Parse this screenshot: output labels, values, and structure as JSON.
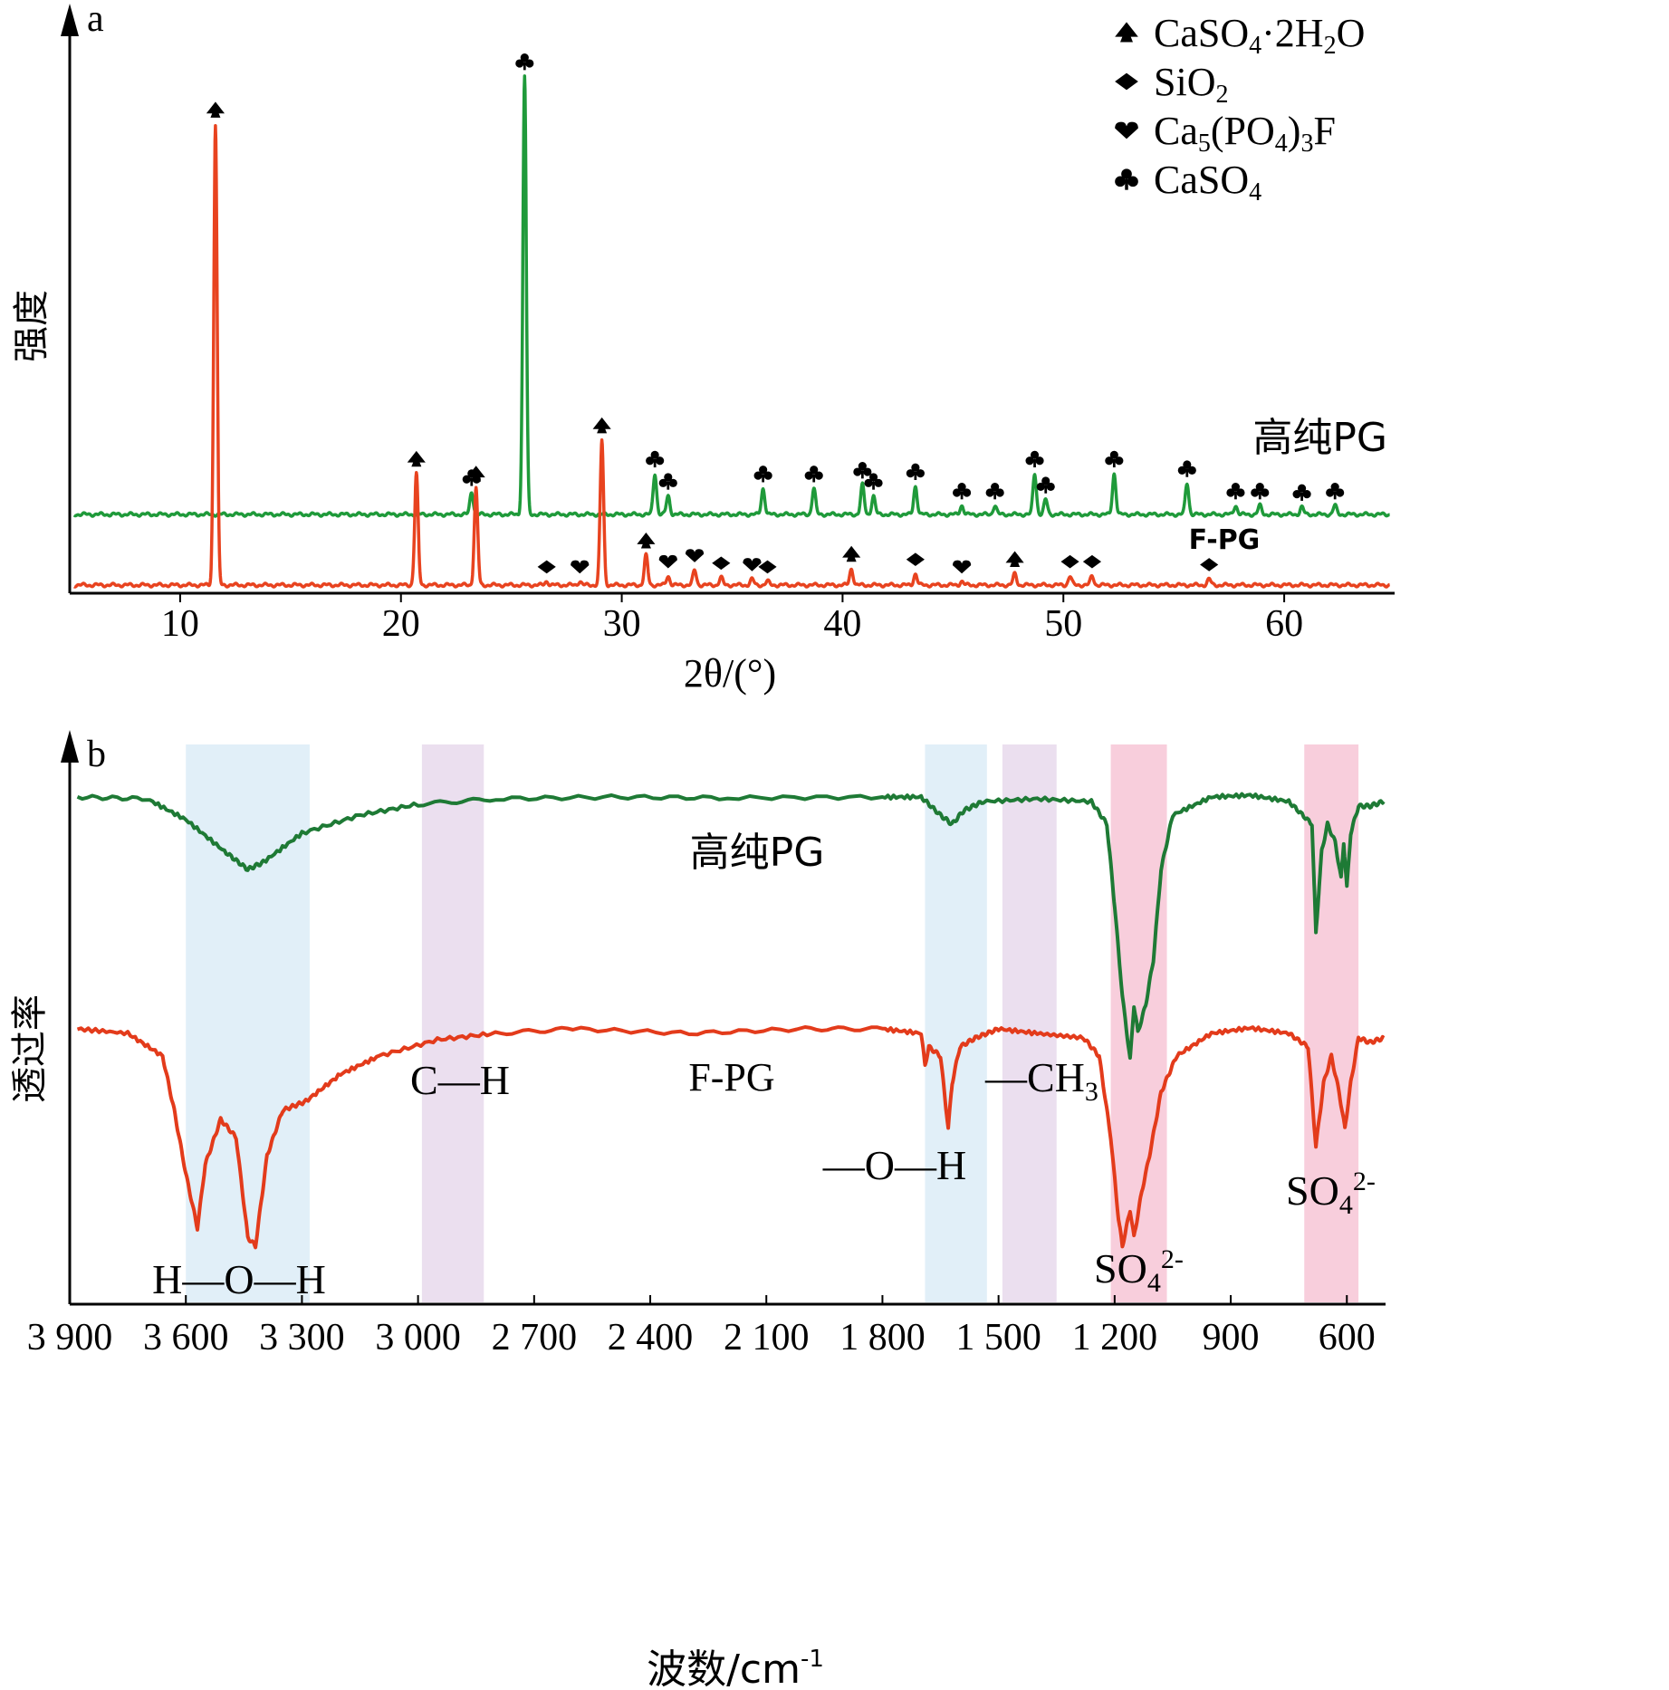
{
  "chart_data": [
    {
      "type": "line",
      "panel_label": "a",
      "xlabel": "2θ/(°)",
      "ylabel": "强度",
      "xlim": [
        5,
        65
      ],
      "xticks": [
        10,
        20,
        30,
        40,
        50,
        60
      ],
      "legend": {
        "position": "top-right",
        "entries": [
          {
            "marker": "spade",
            "html": "CaSO<tspan font-size='28' dy='8'>4</tspan><tspan dy='-8'>·2H</tspan><tspan font-size='28' dy='8'>2</tspan><tspan dy='-8'>O</tspan>",
            "text": "CaSO4·2H2O"
          },
          {
            "marker": "diamond",
            "html": "SiO<tspan font-size='28' dy='8'>2</tspan>",
            "text": "SiO2"
          },
          {
            "marker": "heart",
            "html": "Ca<tspan font-size='28' dy='8'>5</tspan><tspan dy='-8'>(PO</tspan><tspan font-size='28' dy='8'>4</tspan><tspan dy='-8'>)</tspan><tspan font-size='28' dy='8'>3</tspan><tspan dy='-8'>F</tspan>",
            "text": "Ca5(PO4)3F"
          },
          {
            "marker": "club",
            "html": "CaSO<tspan font-size='28' dy='8'>4</tspan>",
            "text": "CaSO4"
          }
        ]
      },
      "series": [
        {
          "name": "高纯PG",
          "color": "#1f9a3a",
          "baseline": 1.0,
          "peaks": [
            {
              "x": 23.2,
              "h": 0.3,
              "m": "club"
            },
            {
              "x": 25.6,
              "h": 5.9,
              "m": "club"
            },
            {
              "x": 31.5,
              "h": 0.55,
              "m": "club"
            },
            {
              "x": 32.1,
              "h": 0.25,
              "m": "club"
            },
            {
              "x": 36.4,
              "h": 0.35,
              "m": "club"
            },
            {
              "x": 38.7,
              "h": 0.35,
              "m": "club"
            },
            {
              "x": 40.9,
              "h": 0.4,
              "m": "club"
            },
            {
              "x": 41.4,
              "h": 0.25,
              "m": "club"
            },
            {
              "x": 43.3,
              "h": 0.38,
              "m": "club"
            },
            {
              "x": 45.4,
              "h": 0.12,
              "m": "club"
            },
            {
              "x": 46.9,
              "h": 0.12,
              "m": "club"
            },
            {
              "x": 48.7,
              "h": 0.55,
              "m": "club"
            },
            {
              "x": 49.2,
              "h": 0.2,
              "m": "club"
            },
            {
              "x": 52.3,
              "h": 0.55,
              "m": "club"
            },
            {
              "x": 55.6,
              "h": 0.42,
              "m": "club"
            },
            {
              "x": 57.8,
              "h": 0.12,
              "m": "club"
            },
            {
              "x": 58.9,
              "h": 0.12,
              "m": "club"
            },
            {
              "x": 60.8,
              "h": 0.1,
              "m": "club"
            },
            {
              "x": 62.3,
              "h": 0.12,
              "m": "club"
            }
          ]
        },
        {
          "name": "F-PG",
          "color": "#e8431f",
          "baseline": 0.0,
          "peaks": [
            {
              "x": 11.6,
              "h": 6.2,
              "m": "spade"
            },
            {
              "x": 20.7,
              "h": 1.5,
              "m": "spade"
            },
            {
              "x": 23.4,
              "h": 1.3,
              "m": "spade"
            },
            {
              "x": 26.6,
              "h": 0.05,
              "m": "diamond"
            },
            {
              "x": 28.1,
              "h": 0.05,
              "m": "heart"
            },
            {
              "x": 29.1,
              "h": 1.95,
              "m": "spade"
            },
            {
              "x": 31.1,
              "h": 0.4,
              "m": "spade"
            },
            {
              "x": 32.1,
              "h": 0.12,
              "m": "heart"
            },
            {
              "x": 33.3,
              "h": 0.2,
              "m": "heart"
            },
            {
              "x": 34.5,
              "h": 0.1,
              "m": "diamond"
            },
            {
              "x": 35.9,
              "h": 0.08,
              "m": "heart"
            },
            {
              "x": 36.6,
              "h": 0.05,
              "m": "diamond"
            },
            {
              "x": 40.4,
              "h": 0.22,
              "m": "spade"
            },
            {
              "x": 43.3,
              "h": 0.15,
              "m": "diamond"
            },
            {
              "x": 45.4,
              "h": 0.05,
              "m": "heart"
            },
            {
              "x": 47.8,
              "h": 0.15,
              "m": "spade"
            },
            {
              "x": 50.3,
              "h": 0.12,
              "m": "diamond"
            },
            {
              "x": 51.3,
              "h": 0.12,
              "m": "diamond"
            },
            {
              "x": 56.6,
              "h": 0.08,
              "m": "diamond"
            }
          ]
        }
      ]
    },
    {
      "type": "line",
      "panel_label": "b",
      "xlabel": "波数/cm",
      "xlabel_sup": "-1",
      "ylabel": "透过率",
      "xlim": [
        3900,
        500
      ],
      "xticks": [
        3900,
        3600,
        3300,
        3000,
        2700,
        2400,
        2100,
        1800,
        1500,
        1200,
        900,
        600
      ],
      "xtick_labels": [
        "3 900",
        "3 600",
        "3 300",
        "3 000",
        "2 700",
        "2 400",
        "2 100",
        "1 800",
        "1 500",
        "1 200",
        "900",
        "600"
      ],
      "bands": [
        {
          "from": 3600,
          "to": 3280,
          "color": "#dcecf7",
          "label": "H—O—H"
        },
        {
          "from": 2990,
          "to": 2830,
          "color": "#e7d9ec",
          "label": "C—H"
        },
        {
          "from": 1690,
          "to": 1530,
          "color": "#dcecf7",
          "label": "—O—H"
        },
        {
          "from": 1490,
          "to": 1350,
          "color": "#e7d9ec",
          "label": "—CH"
        },
        {
          "from": 1210,
          "to": 1065,
          "color": "#f7c6d6",
          "label": "SO"
        },
        {
          "from": 710,
          "to": 570,
          "color": "#f7c6d6",
          "label": "SO"
        }
      ],
      "series": [
        {
          "name": "高纯PG",
          "color": "#1e7a35",
          "points": [
            [
              3880,
              0
            ],
            [
              3700,
              -0.02
            ],
            [
              3600,
              -0.25
            ],
            [
              3500,
              -0.6
            ],
            [
              3440,
              -0.8
            ],
            [
              3400,
              -0.72
            ],
            [
              3300,
              -0.4
            ],
            [
              3150,
              -0.2
            ],
            [
              3000,
              -0.08
            ],
            [
              2800,
              -0.02
            ],
            [
              2500,
              0
            ],
            [
              2200,
              -0.01
            ],
            [
              1800,
              0
            ],
            [
              1700,
              0
            ],
            [
              1650,
              -0.2
            ],
            [
              1620,
              -0.3
            ],
            [
              1590,
              -0.15
            ],
            [
              1540,
              -0.05
            ],
            [
              1400,
              -0.02
            ],
            [
              1260,
              -0.05
            ],
            [
              1220,
              -0.3
            ],
            [
              1200,
              -1.2
            ],
            [
              1180,
              -2.2
            ],
            [
              1160,
              -2.9
            ],
            [
              1150,
              -2.3
            ],
            [
              1140,
              -2.6
            ],
            [
              1120,
              -2.3
            ],
            [
              1100,
              -1.8
            ],
            [
              1080,
              -0.8
            ],
            [
              1050,
              -0.2
            ],
            [
              950,
              0
            ],
            [
              850,
              0.02
            ],
            [
              750,
              -0.05
            ],
            [
              690,
              -0.3
            ],
            [
              680,
              -1.5
            ],
            [
              665,
              -0.6
            ],
            [
              650,
              -0.3
            ],
            [
              630,
              -0.5
            ],
            [
              615,
              -0.9
            ],
            [
              608,
              -0.5
            ],
            [
              600,
              -1.0
            ],
            [
              590,
              -0.4
            ],
            [
              570,
              -0.1
            ],
            [
              540,
              -0.1
            ],
            [
              505,
              -0.05
            ]
          ]
        },
        {
          "name": "F-PG",
          "color": "#e33b1b",
          "points": [
            [
              3880,
              0
            ],
            [
              3750,
              -0.05
            ],
            [
              3660,
              -0.3
            ],
            [
              3630,
              -0.9
            ],
            [
              3600,
              -1.6
            ],
            [
              3570,
              -2.2
            ],
            [
              3550,
              -1.5
            ],
            [
              3510,
              -1.0
            ],
            [
              3470,
              -1.2
            ],
            [
              3440,
              -2.3
            ],
            [
              3420,
              -2.4
            ],
            [
              3390,
              -1.4
            ],
            [
              3350,
              -0.9
            ],
            [
              3290,
              -0.8
            ],
            [
              3200,
              -0.5
            ],
            [
              3100,
              -0.3
            ],
            [
              2950,
              -0.12
            ],
            [
              2800,
              -0.05
            ],
            [
              2600,
              0
            ],
            [
              2300,
              -0.05
            ],
            [
              2000,
              0
            ],
            [
              1800,
              0
            ],
            [
              1700,
              -0.05
            ],
            [
              1690,
              -0.4
            ],
            [
              1680,
              -0.2
            ],
            [
              1650,
              -0.3
            ],
            [
              1630,
              -1.1
            ],
            [
              1620,
              -0.6
            ],
            [
              1600,
              -0.2
            ],
            [
              1560,
              -0.1
            ],
            [
              1500,
              0
            ],
            [
              1400,
              -0.05
            ],
            [
              1280,
              -0.1
            ],
            [
              1240,
              -0.3
            ],
            [
              1210,
              -1.2
            ],
            [
              1190,
              -2.1
            ],
            [
              1180,
              -2.4
            ],
            [
              1160,
              -2.0
            ],
            [
              1150,
              -2.3
            ],
            [
              1130,
              -1.8
            ],
            [
              1110,
              -1.4
            ],
            [
              1080,
              -0.7
            ],
            [
              1040,
              -0.3
            ],
            [
              950,
              -0.05
            ],
            [
              850,
              0.01
            ],
            [
              750,
              -0.05
            ],
            [
              700,
              -0.2
            ],
            [
              680,
              -1.3
            ],
            [
              660,
              -0.6
            ],
            [
              640,
              -0.3
            ],
            [
              620,
              -0.7
            ],
            [
              605,
              -1.1
            ],
            [
              590,
              -0.6
            ],
            [
              570,
              -0.1
            ],
            [
              540,
              -0.15
            ],
            [
              505,
              -0.1
            ]
          ]
        }
      ],
      "annotations": [
        {
          "text": "H—O—H"
        },
        {
          "text": "C—H"
        },
        {
          "text": "F-PG"
        },
        {
          "text": "—O—H"
        },
        {
          "text": "—CH"
        },
        {
          "text": "高纯PG"
        },
        {
          "text": "SO"
        },
        {
          "text": "SO"
        }
      ]
    }
  ]
}
